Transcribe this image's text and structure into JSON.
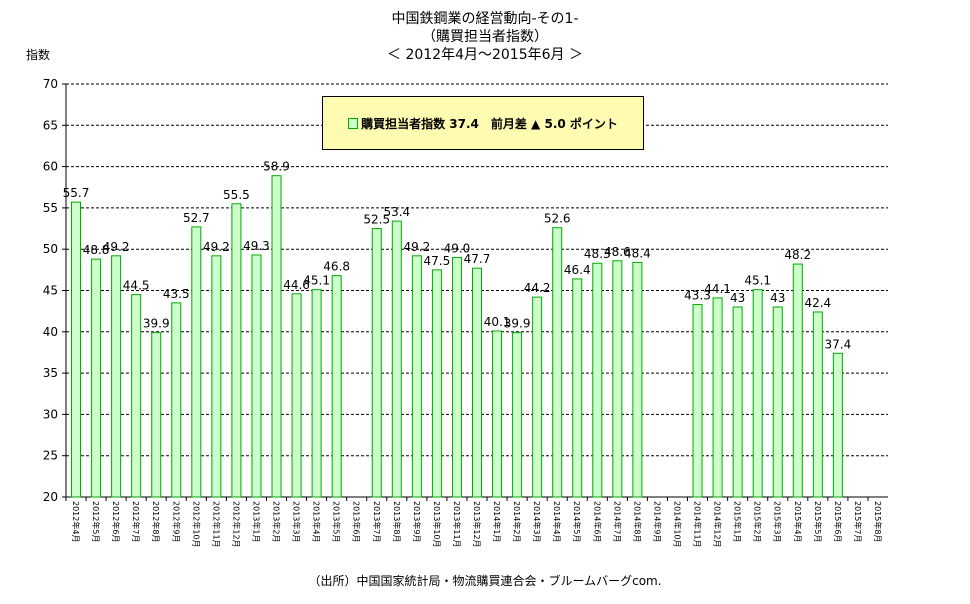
{
  "title": {
    "line1": "中国鉄鋼業の経営動向-その1-",
    "line2": "（購買担当者指数）",
    "line3": "＜ 2012年4月～2015年6月 ＞"
  },
  "ylabel": "指数",
  "source": "（出所）中国国家統計局・物流購買連合会・ブルームバーグcom.",
  "legend": {
    "text": "購買担当者指数 37.4　前月差 ▲ 5.0 ポイント"
  },
  "colors": {
    "bar_fill": "#ccffcc",
    "bar_stroke": "#00aa00",
    "legend_bg": "#fffbb0",
    "grid": "#000000"
  },
  "chart_data": {
    "type": "bar",
    "title": "中国鉄鋼業の経営動向-その1-",
    "ylabel": "指数",
    "ylim": [
      20,
      70
    ],
    "yticks": [
      20,
      25,
      30,
      35,
      40,
      45,
      50,
      55,
      60,
      65,
      70
    ],
    "grid": "horizontal dashed",
    "legend_position": "top-center",
    "categories": [
      "2012年4月",
      "2012年5月",
      "2012年6月",
      "2012年7月",
      "2012年8月",
      "2012年9月",
      "2012年10月",
      "2012年11月",
      "2012年12月",
      "2013年1月",
      "2013年2月",
      "2013年3月",
      "2013年4月",
      "2013年5月",
      "2013年6月",
      "2013年7月",
      "2013年8月",
      "2013年9月",
      "2013年10月",
      "2013年11月",
      "2013年12月",
      "2014年1月",
      "2014年2月",
      "2014年3月",
      "2014年4月",
      "2014年5月",
      "2014年6月",
      "2014年7月",
      "2014年8月",
      "2014年9月",
      "2014年10月",
      "2014年11月",
      "2014年12月",
      "2015年1月",
      "2015年2月",
      "2015年3月",
      "2015年4月",
      "2015年5月",
      "2015年6月",
      "2015年7月",
      "2015年8月"
    ],
    "series": [
      {
        "name": "購買担当者指数",
        "values": [
          55.7,
          48.8,
          49.2,
          44.5,
          39.9,
          43.5,
          52.7,
          49.2,
          55.5,
          49.3,
          58.9,
          44.6,
          45.1,
          46.8,
          null,
          52.5,
          53.4,
          49.2,
          47.5,
          49.0,
          47.7,
          40.1,
          39.9,
          44.2,
          52.6,
          46.4,
          48.3,
          48.6,
          48.4,
          null,
          null,
          43.3,
          44.1,
          43,
          45.1,
          43,
          48.2,
          42.4,
          37.4,
          null,
          null
        ],
        "labels": [
          "55.7",
          "48.8",
          "49.2",
          "44.5",
          "39.9",
          "43.5",
          "52.7",
          "49.2",
          "55.5",
          "49.3",
          "58.9",
          "44.6",
          "45.1",
          "46.8",
          "",
          "52.5",
          "53.4",
          "49.2",
          "47.5",
          "49.0",
          "47.7",
          "40.1",
          "39.9",
          "44.2",
          "52.6",
          "46.4",
          "48.3",
          "48.6",
          "48.4",
          "",
          "",
          "43.3",
          "44.1",
          "43",
          "45.1",
          "43",
          "48.2",
          "42.4",
          "37.4",
          "",
          ""
        ]
      }
    ]
  }
}
